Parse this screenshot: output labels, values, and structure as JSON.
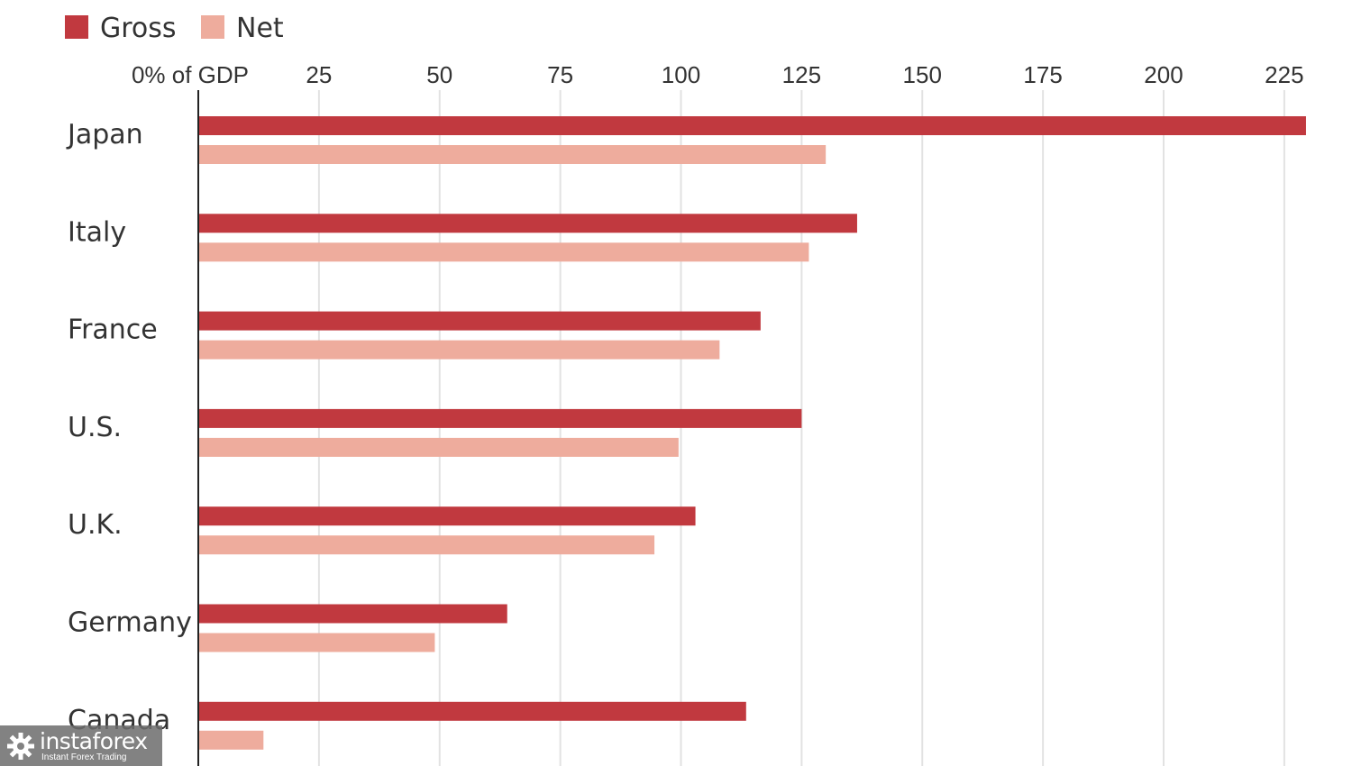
{
  "chart_data": {
    "type": "bar",
    "orientation": "horizontal",
    "categories": [
      "Japan",
      "Italy",
      "France",
      "U.S.",
      "U.K.",
      "Germany",
      "Canada"
    ],
    "series": [
      {
        "name": "Gross",
        "color": "#c1393f",
        "values": [
          229.5,
          136.5,
          116.5,
          125,
          103,
          64,
          113.5
        ]
      },
      {
        "name": "Net",
        "color": "#eeac9d",
        "values": [
          130,
          126.5,
          108,
          99.5,
          94.5,
          49,
          13.5
        ]
      }
    ],
    "xticks": [
      0,
      25,
      50,
      75,
      100,
      125,
      150,
      175,
      200,
      225
    ],
    "xtick_labels": [
      "0% of GDP",
      "25",
      "50",
      "75",
      "100",
      "125",
      "150",
      "175",
      "200",
      "225"
    ],
    "xlim": [
      0,
      230
    ],
    "grid": true,
    "legend_position": "top-left",
    "title": "",
    "xlabel": "",
    "ylabel": ""
  },
  "watermark": {
    "brand": "instaforex",
    "tagline": "Instant Forex Trading",
    "icon": "gear-icon"
  }
}
